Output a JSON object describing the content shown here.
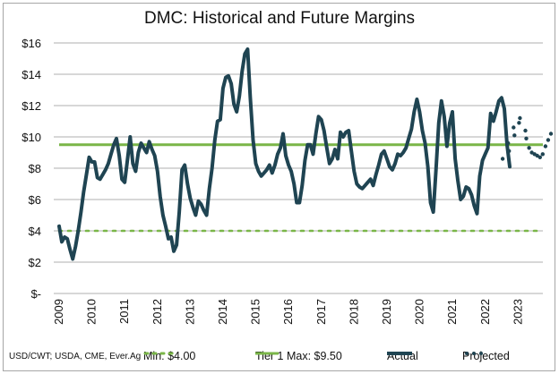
{
  "chart_data": {
    "type": "line",
    "title": "DMC: Historical and Future Margins",
    "xlabel": "",
    "ylabel": "",
    "source_note": "USD/CWT; USDA, CME, Ever.Ag",
    "ylim": [
      0,
      16
    ],
    "xlim": [
      2009,
      2023.9
    ],
    "y_ticks": [
      {
        "value": 16,
        "label": "$16"
      },
      {
        "value": 14,
        "label": "$14"
      },
      {
        "value": 12,
        "label": "$12"
      },
      {
        "value": 10,
        "label": "$10"
      },
      {
        "value": 8,
        "label": "$8"
      },
      {
        "value": 6,
        "label": "$6"
      },
      {
        "value": 4,
        "label": "$4"
      },
      {
        "value": 2,
        "label": "$2"
      },
      {
        "value": 0,
        "label": "$-"
      }
    ],
    "x_ticks": [
      "2009",
      "2010",
      "2011",
      "2012",
      "2013",
      "2014",
      "2015",
      "2016",
      "2017",
      "2018",
      "2019",
      "2020",
      "2021",
      "2022",
      "2023"
    ],
    "grid": true,
    "legend_position": "bottom",
    "colors": {
      "actual": "#1f4452",
      "projected": "#1f4452",
      "min": "#7ab648",
      "tier1": "#7ab648",
      "grid": "#bfbfbf"
    },
    "reference_lines": [
      {
        "name": "Min: $4.00",
        "value": 4.0,
        "style": "dotted"
      },
      {
        "name": "Tier 1 Max: $9.50",
        "value": 9.5,
        "style": "solid"
      }
    ],
    "series": [
      {
        "name": "Actual",
        "start": 2009.0,
        "step_years": 0.0833,
        "values": [
          4.3,
          3.3,
          3.6,
          3.5,
          2.8,
          2.2,
          3.0,
          4.0,
          5.2,
          6.5,
          7.6,
          8.7,
          8.4,
          8.4,
          7.4,
          7.3,
          7.6,
          7.9,
          8.3,
          8.9,
          9.5,
          9.9,
          8.8,
          7.3,
          7.1,
          8.5,
          10.0,
          8.3,
          7.8,
          9.0,
          9.6,
          9.3,
          9.0,
          9.7,
          9.2,
          8.8,
          7.8,
          6.2,
          5.0,
          4.3,
          3.5,
          3.6,
          2.7,
          3.1,
          5.2,
          7.9,
          8.2,
          7.0,
          6.1,
          5.5,
          5.0,
          5.9,
          5.7,
          5.3,
          5.0,
          6.7,
          8.0,
          9.8,
          11.0,
          11.1,
          13.1,
          13.8,
          13.9,
          13.4,
          12.1,
          11.6,
          12.6,
          14.2,
          15.3,
          15.6,
          12.5,
          9.8,
          8.3,
          7.8,
          7.5,
          7.7,
          7.9,
          8.2,
          7.7,
          8.2,
          8.9,
          9.3,
          10.2,
          8.8,
          8.2,
          7.8,
          7.0,
          5.8,
          5.8,
          6.9,
          8.5,
          9.5,
          9.5,
          8.9,
          10.2,
          11.3,
          11.1,
          10.4,
          9.3,
          8.3,
          8.6,
          9.2,
          8.6,
          10.3,
          10.0,
          10.3,
          10.4,
          9.1,
          7.8,
          7.0,
          6.8,
          6.7,
          6.9,
          7.1,
          7.3,
          6.9,
          7.6,
          8.2,
          8.9,
          9.1,
          8.6,
          8.1,
          7.9,
          8.3,
          8.9,
          8.8,
          9.0,
          9.3,
          9.9,
          10.5,
          11.6,
          12.4,
          11.6,
          10.4,
          9.6,
          8.1,
          5.8,
          5.2,
          7.9,
          10.9,
          12.3,
          11.3,
          9.4,
          10.9,
          11.6,
          8.6,
          7.2,
          6.0,
          6.2,
          6.8,
          6.7,
          6.3,
          5.6,
          5.1,
          7.5,
          8.5,
          8.9,
          9.3,
          11.5,
          11.0,
          11.6,
          12.3,
          12.5,
          11.8,
          9.5,
          8.1
        ]
      },
      {
        "name": "Projected",
        "start": 2022.5833,
        "step_years": 0.0833,
        "values": [
          8.6,
          9.1,
          9.6,
          10.1,
          10.6,
          11.2,
          10.9,
          10.4,
          9.9,
          9.3,
          9.0,
          8.9,
          8.8,
          8.7,
          8.9,
          9.4,
          9.8,
          10.2
        ]
      }
    ]
  }
}
